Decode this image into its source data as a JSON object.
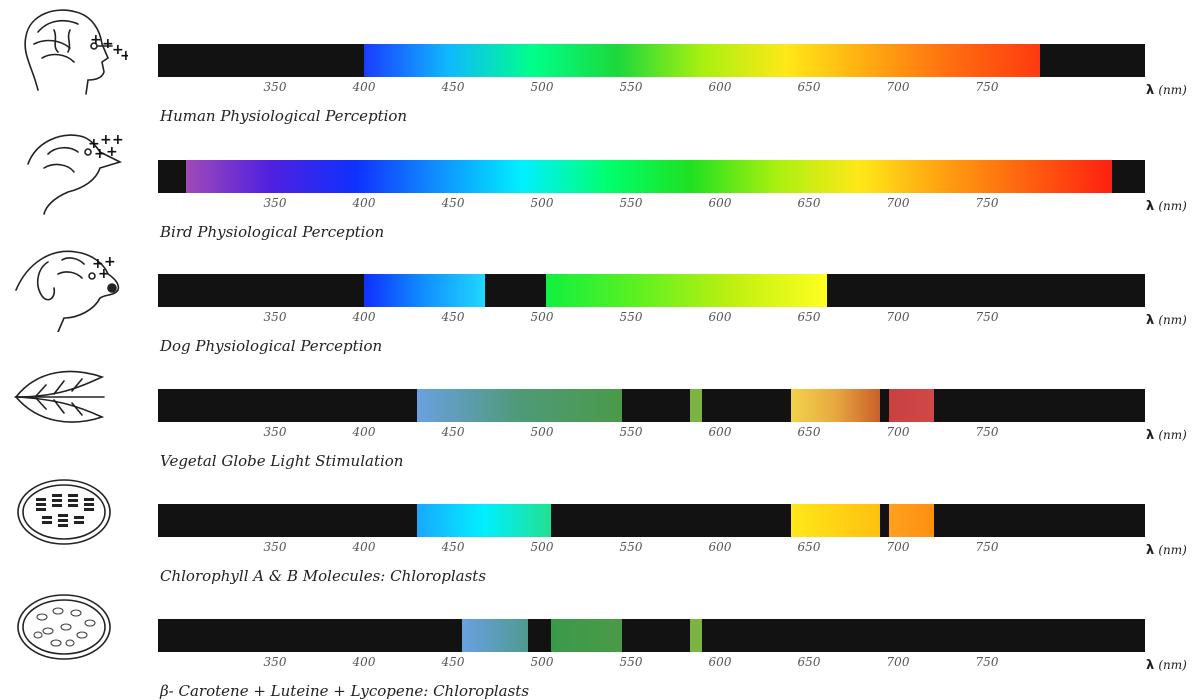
{
  "unit_symbol": "λ",
  "unit": "(nm)",
  "ticks": [
    "350",
    "400",
    "450",
    "500",
    "550",
    "600",
    "650",
    "700",
    "750"
  ],
  "rows": [
    {
      "caption": "Human Physiological Perception",
      "icon": "human-head-icon",
      "segments": [
        {
          "from": 400,
          "to": 780,
          "gradient": [
            "#1a3cff",
            "#0fb9ff",
            "#00ff8a",
            "#1cd83c",
            "#a8f010",
            "#ffe818",
            "#ffa810",
            "#ff6a10",
            "#ff3a10"
          ]
        }
      ]
    },
    {
      "caption": "Bird Physiological Perception",
      "icon": "bird-head-icon",
      "segments": [
        {
          "from": 300,
          "to": 820,
          "gradient": [
            "#a04ab8",
            "#5020e0",
            "#1030ff",
            "#1090ff",
            "#00f0ff",
            "#00ff70",
            "#20e020",
            "#a8f010",
            "#ffe818",
            "#ffa010",
            "#ff6010",
            "#ff2010"
          ]
        }
      ]
    },
    {
      "caption": "Dog Physiological Perception",
      "icon": "dog-head-icon",
      "segments": [
        {
          "from": 400,
          "to": 468,
          "gradient": [
            "#1030ff",
            "#1090ff",
            "#20d8ff"
          ]
        },
        {
          "from": 502,
          "to": 660,
          "gradient": [
            "#10f040",
            "#60f020",
            "#c0f010",
            "#ffff20"
          ]
        }
      ]
    },
    {
      "caption": "Vegetal Globe Light Stimulation",
      "icon": "leaf-icon",
      "segments": [
        {
          "from": 430,
          "to": 545,
          "gradient": [
            "#6aa0e0",
            "#4f9a78",
            "#4a9a48"
          ]
        },
        {
          "from": 583,
          "to": 590,
          "gradient": [
            "#7cb342",
            "#7cb342"
          ]
        },
        {
          "from": 640,
          "to": 690,
          "gradient": [
            "#f2d24a",
            "#e8a840",
            "#c8602a"
          ]
        },
        {
          "from": 695,
          "to": 720,
          "gradient": [
            "#c84040",
            "#d04848"
          ]
        }
      ]
    },
    {
      "caption": "Chlorophyll A & B Molecules: Chloroplasts",
      "icon": "chloroplast-icon",
      "segments": [
        {
          "from": 430,
          "to": 505,
          "gradient": [
            "#1aa8ff",
            "#00f0ff",
            "#22e090"
          ]
        },
        {
          "from": 640,
          "to": 690,
          "gradient": [
            "#ffe818",
            "#ffc010"
          ]
        },
        {
          "from": 695,
          "to": 720,
          "gradient": [
            "#ffa020",
            "#ff9010"
          ]
        }
      ]
    },
    {
      "caption": "β- Carotene + Luteine + Lycopene: Chloroplasts",
      "icon": "cell-icon",
      "segments": [
        {
          "from": 455,
          "to": 492,
          "gradient": [
            "#6aa0e0",
            "#4f9a90"
          ]
        },
        {
          "from": 505,
          "to": 545,
          "gradient": [
            "#3a9a4a",
            "#4a9a48"
          ]
        },
        {
          "from": 583,
          "to": 590,
          "gradient": [
            "#7cb342",
            "#7cb342"
          ]
        }
      ]
    }
  ]
}
